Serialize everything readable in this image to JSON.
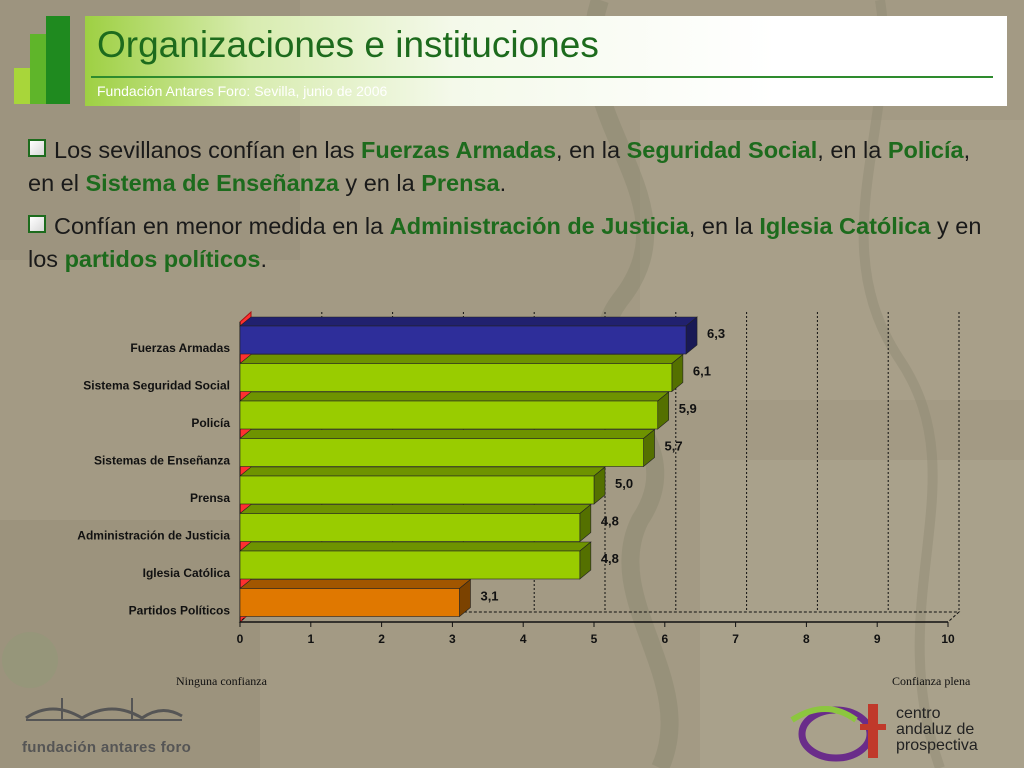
{
  "header": {
    "title": "Organizaciones e instituciones",
    "subtitle": "Fundación Antares Foro: Sevilla, junio de 2006"
  },
  "bullets": [
    {
      "parts": [
        {
          "t": "Los sevillanos confían en las ",
          "b": false
        },
        {
          "t": "Fuerzas Armadas",
          "b": true
        },
        {
          "t": ", en la ",
          "b": false
        },
        {
          "t": "Seguridad Social",
          "b": true
        },
        {
          "t": ", en la ",
          "b": false
        },
        {
          "t": "Policía",
          "b": true
        },
        {
          "t": ", en el ",
          "b": false
        },
        {
          "t": "Sistema de Enseñanza",
          "b": true
        },
        {
          "t": " y en la ",
          "b": false
        },
        {
          "t": "Prensa",
          "b": true
        },
        {
          "t": ".",
          "b": false
        }
      ]
    },
    {
      "parts": [
        {
          "t": "Confían en menor medida en la ",
          "b": false
        },
        {
          "t": "Administración de Justicia",
          "b": true
        },
        {
          "t": ", en la ",
          "b": false
        },
        {
          "t": "Iglesia Católica",
          "b": true
        },
        {
          "t": " y en los ",
          "b": false
        },
        {
          "t": "partidos políticos",
          "b": true
        },
        {
          "t": ".",
          "b": false
        }
      ]
    }
  ],
  "chart_data": {
    "type": "bar",
    "orientation": "horizontal",
    "categories": [
      "Fuerzas Armadas",
      "Sistema Seguridad Social",
      "Policía",
      "Sistemas de Enseñanza",
      "Prensa",
      "Administración de Justicia",
      "Iglesia Católica",
      "Partidos Políticos"
    ],
    "values": [
      6.3,
      6.1,
      5.9,
      5.7,
      5.0,
      4.8,
      4.8,
      3.1
    ],
    "value_labels": [
      "6,3",
      "6,1",
      "5,9",
      "5,7",
      "5,0",
      "4,8",
      "4,8",
      "3,1"
    ],
    "bar_colors": [
      "#2e2e9a",
      "#99cc00",
      "#99cc00",
      "#99cc00",
      "#99cc00",
      "#99cc00",
      "#99cc00",
      "#e07800"
    ],
    "xlim": [
      0,
      10
    ],
    "x_ticks": [
      "0",
      "1",
      "2",
      "3",
      "4",
      "5",
      "6",
      "7",
      "8",
      "9",
      "10"
    ],
    "xlabel_left": "Ninguna confianza",
    "xlabel_right": "Confianza plena",
    "grid": true,
    "three_d": true
  },
  "footer": {
    "left_logo_text": "fundación antares foro",
    "right_logo_lines": [
      "centro",
      "andaluz de",
      "prospectiva"
    ]
  },
  "colors": {
    "title_green": "#1d6b1d",
    "accent_green": "#99cc00",
    "blue_bar": "#2e2e9a",
    "orange_bar": "#e07800"
  }
}
